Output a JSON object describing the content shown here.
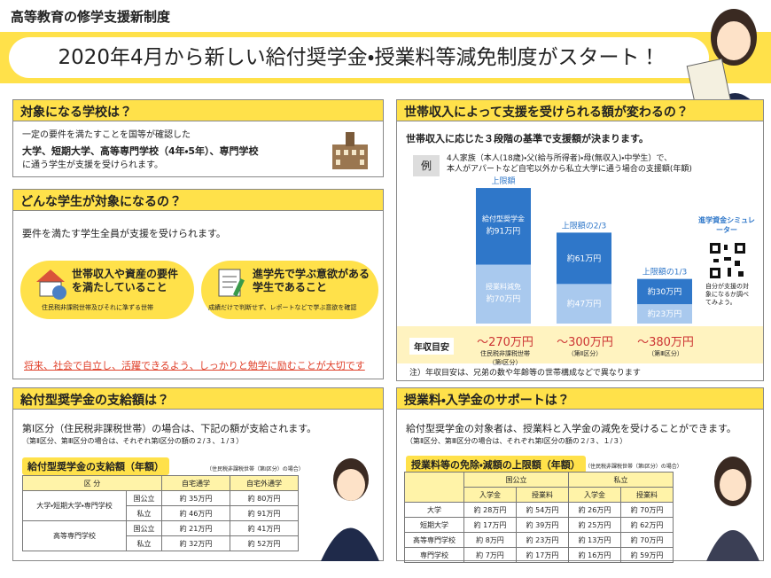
{
  "header": {
    "category": "高等教育の修学支援新制度",
    "title": "2020年4月から新しい給付奨学金・授業料等減免制度がスタート！"
  },
  "schools": {
    "heading": "対象になる学校は？",
    "lines": [
      "一定の要件を満たすことを国等が確認した",
      "大学、短期大学、高等専門学校（4年・5年）、専門学校",
      "に通う学生が支援を受けられます。"
    ]
  },
  "students": {
    "heading": "どんな学生が対象になるの？",
    "intro": "要件を満たす学生全員が支援を受けられます。",
    "items": [
      {
        "title": "世帯収入や資産の要件を満たしていること",
        "note": "住民税非課税世帯及びそれに準ずる世帯"
      },
      {
        "title": "進学先で学ぶ意欲がある学生であること",
        "note": "成績だけで判断せず、レポートなどで学ぶ意欲を確認"
      }
    ],
    "footer": "将来、社会で自立し、活躍できるよう、しっかりと勉学に励むことが大切です"
  },
  "income": {
    "heading": "世帯収入によって支援を受けられる額が変わるの？",
    "subtitle": "世帯収入に応じた３段階の基準で支援額が決まります。",
    "example_tag": "例",
    "example_lines": [
      "4人家族（本人(18歳)・父(給与所得者)・母(無収入)・中学生）で、",
      "本人がアパートなど自宅以外から私立大学に通う場合の支援額(年額)"
    ],
    "income_label": "年収目安",
    "tiers": [
      {
        "amount": "～270万円",
        "note": "住民税非課税世帯",
        "tier": "（第Ⅰ区分）"
      },
      {
        "amount": "～300万円",
        "tier": "（第Ⅱ区分）"
      },
      {
        "amount": "～380万円",
        "tier": "（第Ⅲ区分）"
      }
    ],
    "footnote": "注）年収目安は、兄弟の数や年齢等の世帯構成などで異なります",
    "simulator": {
      "title": "進学資金シミュレーター",
      "note": "自分が支援の対象になるか調べてみよう。"
    }
  },
  "chart_data": {
    "type": "bar",
    "stacked": true,
    "categories": [
      "上限額",
      "上限額の2/3",
      "上限額の1/3"
    ],
    "series": [
      {
        "name": "授業料減免",
        "color": "#a9c9ee",
        "values": [
          70,
          47,
          23
        ],
        "value_labels": [
          "約70万円",
          "約47万円",
          "約23万円"
        ]
      },
      {
        "name": "給付型奨学金",
        "color": "#2f77c9",
        "values": [
          91,
          61,
          30
        ],
        "value_labels": [
          "約91万円",
          "約61万円",
          "約30万円"
        ]
      }
    ],
    "ylim": [
      0,
      170
    ]
  },
  "grant": {
    "heading": "給付型奨学金の支給額は？",
    "text": "第Ⅰ区分（住民税非課税世帯）の場合は、下記の額が支給されます。",
    "note": "（第Ⅱ区分、第Ⅲ区分の場合は、それぞれ第Ⅰ区分の額の２/３、１/３）",
    "table": {
      "title": "給付型奨学金の支給額（年額）",
      "note": "（住民税非課税世帯（第Ⅰ区分）の場合）",
      "headers": {
        "division": "区 分",
        "home": "自宅通学",
        "away": "自宅外通学"
      },
      "groups": [
        {
          "name": "大学・短期大学・専門学校",
          "rows": [
            {
              "type": "国公立",
              "home": "約 35万円",
              "away": "約 80万円"
            },
            {
              "type": "私立",
              "home": "約 46万円",
              "away": "約 91万円"
            }
          ]
        },
        {
          "name": "高等専門学校",
          "rows": [
            {
              "type": "国公立",
              "home": "約 21万円",
              "away": "約 41万円"
            },
            {
              "type": "私立",
              "home": "約 32万円",
              "away": "約 52万円"
            }
          ]
        }
      ]
    }
  },
  "tuition": {
    "heading": "授業料・入学金のサポートは？",
    "text": "給付型奨学金の対象者は、授業料と入学金の減免を受けることができます。",
    "note": "（第Ⅱ区分、第Ⅲ区分の場合は、それぞれ第Ⅰ区分の額の２/３、１/３）",
    "table": {
      "title": "授業料等の免除・減額の上限額（年額）",
      "note": "（住民税非課税世帯（第Ⅰ区分）の場合）",
      "groups": [
        "国公立",
        "私立"
      ],
      "subheaders": [
        "入学金",
        "授業料",
        "入学金",
        "授業料"
      ],
      "rows": [
        {
          "name": "大学",
          "cells": [
            "約 28万円",
            "約 54万円",
            "約 26万円",
            "約 70万円"
          ]
        },
        {
          "name": "短期大学",
          "cells": [
            "約 17万円",
            "約 39万円",
            "約 25万円",
            "約 62万円"
          ]
        },
        {
          "name": "高等専門学校",
          "cells": [
            "約 8万円",
            "約 23万円",
            "約 13万円",
            "約 70万円"
          ]
        },
        {
          "name": "専門学校",
          "cells": [
            "約 7万円",
            "約 17万円",
            "約 16万円",
            "約 59万円"
          ]
        }
      ]
    }
  }
}
